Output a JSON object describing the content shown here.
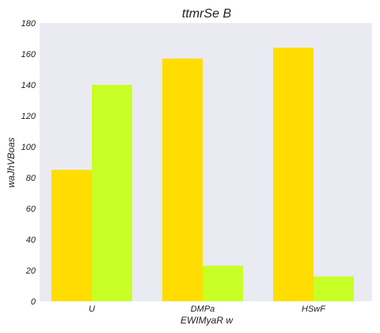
{
  "chart_data": {
    "type": "bar",
    "title": "ttmrSe B",
    "xlabel": "EWIMyaR w",
    "ylabel": "waJhVBoas",
    "categories": [
      "U",
      "DMPa",
      "HSwF"
    ],
    "series": [
      {
        "values": [
          85,
          157,
          164
        ],
        "color": "#ffdd00"
      },
      {
        "values": [
          140,
          23,
          16
        ],
        "color": "#c8ff26"
      }
    ],
    "ylim": [
      0,
      180
    ],
    "yticks": [
      0,
      20,
      40,
      60,
      80,
      100,
      120,
      140,
      160,
      180
    ],
    "grid": false,
    "plot_background": "#eaeaf2"
  }
}
